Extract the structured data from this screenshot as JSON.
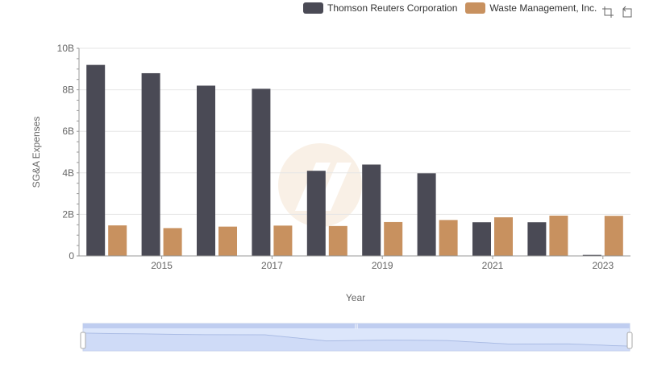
{
  "chart_data": {
    "type": "bar",
    "x": [
      2014,
      2015,
      2016,
      2017,
      2018,
      2019,
      2020,
      2021,
      2022,
      2023
    ],
    "xticks": [
      "2015",
      "2017",
      "2019",
      "2021",
      "2023"
    ],
    "yticks": [
      "0",
      "2B",
      "4B",
      "6B",
      "8B",
      "10B"
    ],
    "ylim": [
      0,
      10000000000
    ],
    "xlabel": "Year",
    "ylabel": "SG&A Expenses",
    "legend_position": "top-right",
    "series": [
      {
        "name": "Thomson Reuters Corporation",
        "color": "#4a4a55",
        "values": [
          9200000000,
          8800000000,
          8200000000,
          8050000000,
          4100000000,
          4400000000,
          3980000000,
          1620000000,
          1620000000,
          50000000
        ]
      },
      {
        "name": "Waste Management, Inc.",
        "color": "#c8915f",
        "values": [
          1470000000,
          1340000000,
          1410000000,
          1460000000,
          1440000000,
          1630000000,
          1730000000,
          1860000000,
          1940000000,
          1930000000
        ]
      }
    ]
  },
  "toolbox": {
    "zoom_icon": "zoom-icon",
    "restore_icon": "restore-icon"
  },
  "slider": {
    "start": 0,
    "end": 100,
    "handle_label": "|||"
  }
}
